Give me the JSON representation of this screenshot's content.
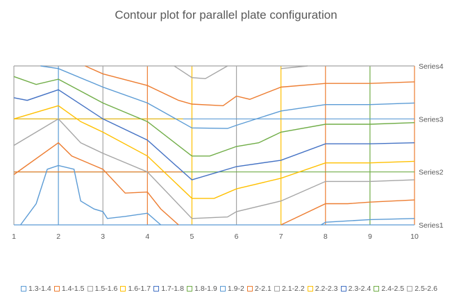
{
  "chart_data": {
    "type": "contour",
    "title": "Contour plot for parallel plate configuration",
    "x": [
      1,
      2,
      3,
      4,
      5,
      6,
      7,
      8,
      9,
      10
    ],
    "xlim": [
      1,
      10
    ],
    "y_categories": [
      "Series1",
      "Series2",
      "Series3",
      "Series4"
    ],
    "grid": true,
    "legend_position": "bottom",
    "legend": [
      {
        "label": "1.3-1.4",
        "color": "#5b9bd5"
      },
      {
        "label": "1.4-1.5",
        "color": "#ed7d31"
      },
      {
        "label": "1.5-1.6",
        "color": "#a5a5a5"
      },
      {
        "label": "1.6-1.7",
        "color": "#ffc000"
      },
      {
        "label": "1.7-1.8",
        "color": "#4472c4"
      },
      {
        "label": "1.8-1.9",
        "color": "#70ad47"
      },
      {
        "label": "1.9-2",
        "color": "#5b9bd5"
      },
      {
        "label": "2-2.1",
        "color": "#ed7d31"
      },
      {
        "label": "2.1-2.2",
        "color": "#a5a5a5"
      },
      {
        "label": "2.2-2.3",
        "color": "#ffc000"
      },
      {
        "label": "2.3-2.4",
        "color": "#4472c4"
      },
      {
        "label": "2.4-2.5",
        "color": "#70ad47"
      },
      {
        "label": "2.5-2.6",
        "color": "#a5a5a5"
      }
    ],
    "contours": [
      {
        "level": "1.3-1.4",
        "color": "#5b9bd5",
        "points": [
          [
            1.15,
            0
          ],
          [
            1.5,
            0.4
          ],
          [
            1.75,
            1.05
          ],
          [
            2,
            1.12
          ],
          [
            2.35,
            1.05
          ],
          [
            2.5,
            0.45
          ],
          [
            2.8,
            0.3
          ],
          [
            3,
            0.25
          ],
          [
            3.1,
            0.12
          ],
          [
            3.5,
            0.16
          ],
          [
            4,
            0.22
          ],
          [
            4.3,
            0
          ]
        ]
      },
      {
        "level": "1.3-1.4 (upper)",
        "color": "#5b9bd5",
        "points": [
          [
            7.9,
            0
          ],
          [
            8,
            0.05
          ],
          [
            9,
            0.1
          ],
          [
            10,
            0.12
          ]
        ]
      },
      {
        "level": "1.4-1.5",
        "color": "#ed7d31",
        "points": [
          [
            1,
            0.95
          ],
          [
            2,
            1.55
          ],
          [
            2.3,
            1.3
          ],
          [
            3,
            1.05
          ],
          [
            3.5,
            0.6
          ],
          [
            4,
            0.62
          ],
          [
            4.3,
            0.3
          ],
          [
            4.7,
            0
          ]
        ]
      },
      {
        "level": "1.4-1.5 (upper)",
        "color": "#ed7d31",
        "points": [
          [
            7,
            0
          ],
          [
            8,
            0.4
          ],
          [
            8.5,
            0.4
          ],
          [
            9,
            0.43
          ],
          [
            10,
            0.47
          ]
        ]
      },
      {
        "level": "1.5-1.6",
        "color": "#a5a5a5",
        "points": [
          [
            1,
            1.5
          ],
          [
            2,
            2
          ],
          [
            2.5,
            1.55
          ],
          [
            3,
            1.35
          ],
          [
            4,
            1.0
          ],
          [
            5,
            0.12
          ],
          [
            5.8,
            0.15
          ],
          [
            6,
            0.25
          ],
          [
            7,
            0.45
          ],
          [
            8,
            0.82
          ],
          [
            9,
            0.82
          ],
          [
            10,
            0.85
          ]
        ]
      },
      {
        "level": "1.6-1.7",
        "color": "#ffc000",
        "points": [
          [
            1,
            2
          ],
          [
            2,
            2.25
          ],
          [
            2.5,
            1.95
          ],
          [
            3,
            1.75
          ],
          [
            4,
            1.3
          ],
          [
            5,
            0.5
          ],
          [
            5.5,
            0.5
          ],
          [
            6,
            0.68
          ],
          [
            7,
            0.88
          ],
          [
            8,
            1.17
          ],
          [
            9,
            1.17
          ],
          [
            10,
            1.2
          ]
        ]
      },
      {
        "level": "1.7-1.8",
        "color": "#4472c4",
        "points": [
          [
            1,
            2.4
          ],
          [
            1.3,
            2.35
          ],
          [
            2,
            2.55
          ],
          [
            3,
            2.0
          ],
          [
            4,
            1.6
          ],
          [
            5,
            0.85
          ],
          [
            5.6,
            1.0
          ],
          [
            6,
            1.1
          ],
          [
            7,
            1.22
          ],
          [
            8,
            1.53
          ],
          [
            9,
            1.53
          ],
          [
            10,
            1.55
          ]
        ]
      },
      {
        "level": "1.8-1.9",
        "color": "#70ad47",
        "points": [
          [
            1,
            2.8
          ],
          [
            1.5,
            2.65
          ],
          [
            2,
            2.75
          ],
          [
            3,
            2.3
          ],
          [
            4,
            1.95
          ],
          [
            5,
            1.3
          ],
          [
            5.4,
            1.3
          ],
          [
            6,
            1.48
          ],
          [
            6.5,
            1.55
          ],
          [
            7,
            1.75
          ],
          [
            8,
            1.9
          ],
          [
            9,
            1.9
          ],
          [
            10,
            1.93
          ]
        ]
      },
      {
        "level": "1.9-2",
        "color": "#5b9bd5",
        "points": [
          [
            1.6,
            3.0
          ],
          [
            2,
            2.95
          ],
          [
            3,
            2.6
          ],
          [
            4,
            2.3
          ],
          [
            5,
            1.83
          ],
          [
            5.8,
            1.82
          ],
          [
            6,
            1.88
          ],
          [
            7,
            2.15
          ],
          [
            8,
            2.27
          ],
          [
            9,
            2.27
          ],
          [
            10,
            2.3
          ]
        ]
      },
      {
        "level": "2-2.1",
        "color": "#ed7d31",
        "points": [
          [
            2.6,
            3.0
          ],
          [
            3,
            2.85
          ],
          [
            4,
            2.63
          ],
          [
            4.7,
            2.35
          ],
          [
            5,
            2.28
          ],
          [
            5.7,
            2.25
          ],
          [
            6,
            2.43
          ],
          [
            6.3,
            2.37
          ],
          [
            7,
            2.6
          ],
          [
            8,
            2.67
          ],
          [
            9,
            2.67
          ],
          [
            10,
            2.7
          ]
        ]
      },
      {
        "level": "2.1-2.2",
        "color": "#a5a5a5",
        "points": [
          [
            4.6,
            3.0
          ],
          [
            5,
            2.78
          ],
          [
            5.3,
            2.76
          ],
          [
            5.8,
            3.0
          ]
        ]
      },
      {
        "level": "2.1-2.2 (upper)",
        "color": "#a5a5a5",
        "points": [
          [
            7,
            2.95
          ],
          [
            7.6,
            3.0
          ]
        ]
      }
    ]
  }
}
